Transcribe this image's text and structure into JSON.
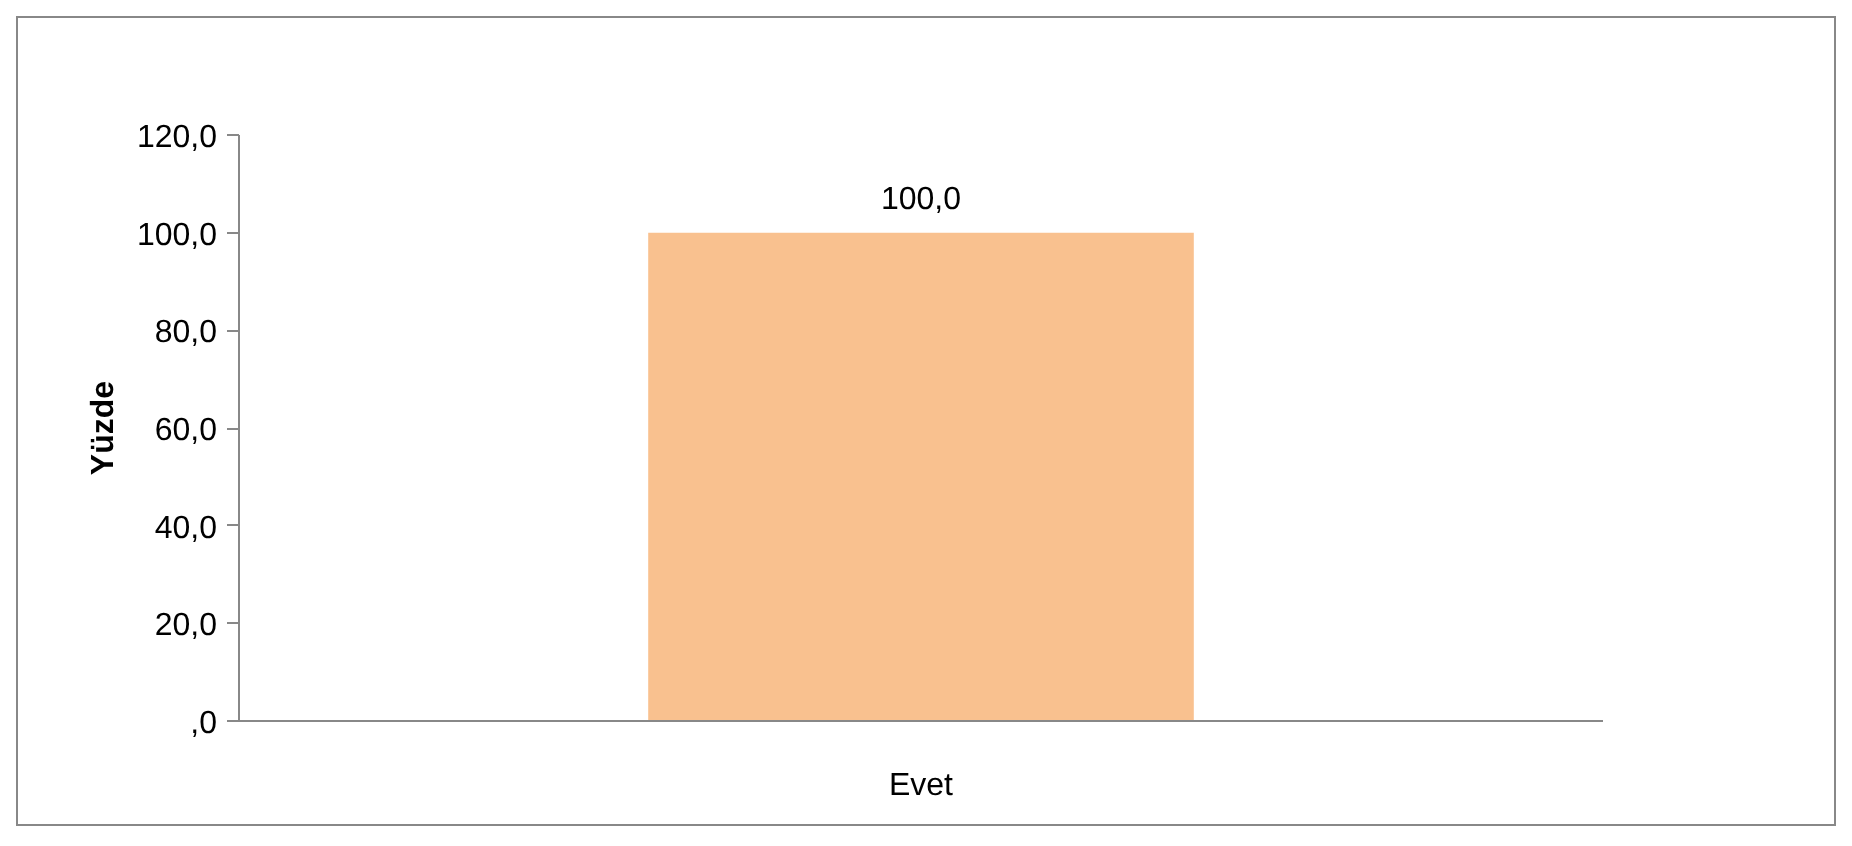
{
  "chart_data": {
    "type": "bar",
    "ylabel": "Yüzde",
    "categories": [
      "Evet"
    ],
    "values": [
      100
    ],
    "value_labels": [
      "100,0"
    ],
    "color": "#f9c18f",
    "ylim": [
      0,
      120
    ],
    "yticks": [
      {
        "value": 0,
        "label": ",0"
      },
      {
        "value": 20,
        "label": "20,0"
      },
      {
        "value": 40,
        "label": "40,0"
      },
      {
        "value": 60,
        "label": "60,0"
      },
      {
        "value": 80,
        "label": "80,0"
      },
      {
        "value": 100,
        "label": "100,0"
      },
      {
        "value": 120,
        "label": "120,0"
      }
    ],
    "grid": false
  }
}
